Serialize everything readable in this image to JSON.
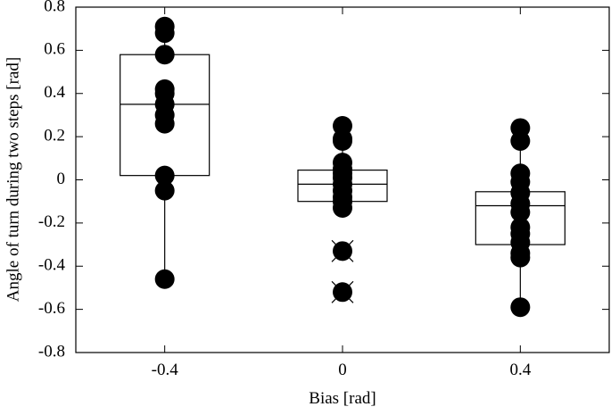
{
  "chart_data": {
    "type": "box",
    "xlabel": "Bias [rad]",
    "ylabel": "Angle of turn during two steps [rad]",
    "x": [
      -0.4,
      0,
      0.4
    ],
    "xlim": [
      -0.6,
      0.6
    ],
    "xticks": [
      -0.4,
      0,
      0.4
    ],
    "ylim": [
      -0.8,
      0.8
    ],
    "yticks": [
      -0.8,
      -0.6,
      -0.4,
      -0.2,
      0,
      0.2,
      0.4,
      0.6,
      0.8
    ],
    "color": "#000000",
    "boxes": [
      {
        "whisker_low": -0.46,
        "q1": 0.02,
        "median": 0.35,
        "q3": 0.58,
        "whisker_high": 0.71,
        "points": [
          0.71,
          0.68,
          0.58,
          0.42,
          0.4,
          0.35,
          0.3,
          0.26,
          0.02,
          -0.05,
          -0.46
        ],
        "outliers": []
      },
      {
        "whisker_low": -0.13,
        "q1": -0.1,
        "median": -0.02,
        "q3": 0.045,
        "whisker_high": 0.25,
        "points": [
          0.25,
          0.19,
          0.18,
          0.08,
          0.05,
          0.03,
          0.01,
          -0.02,
          -0.05,
          -0.08,
          -0.1,
          -0.13
        ],
        "outliers": [
          -0.33,
          -0.52
        ]
      },
      {
        "whisker_low": -0.59,
        "q1": -0.3,
        "median": -0.12,
        "q3": -0.055,
        "whisker_high": 0.24,
        "points": [
          0.24,
          0.18,
          0.03,
          -0.01,
          -0.06,
          -0.11,
          -0.15,
          -0.22,
          -0.25,
          -0.29,
          -0.34,
          -0.36,
          -0.59
        ],
        "outliers": []
      }
    ]
  }
}
